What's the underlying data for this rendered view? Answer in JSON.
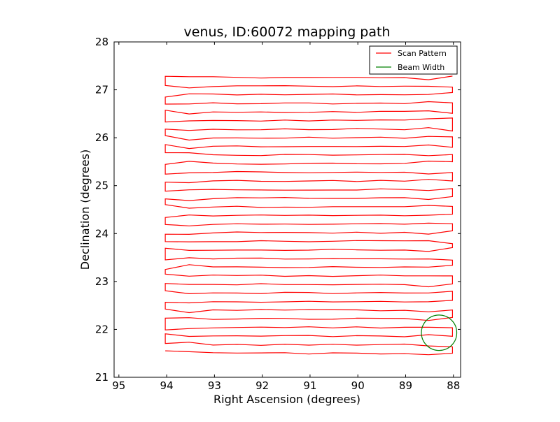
{
  "chart_data": {
    "type": "line",
    "title": "venus, ID:60072 mapping path",
    "xlabel": "Right Ascension (degrees)",
    "ylabel": "Declination (degrees)",
    "xlim": [
      95.1,
      87.85
    ],
    "ylim": [
      21,
      28
    ],
    "x_inverted": true,
    "x_ticks": [
      95,
      94,
      93,
      92,
      91,
      90,
      89,
      88
    ],
    "x_tick_labels": [
      "95",
      "94",
      "93",
      "92",
      "91",
      "90",
      "89",
      "88"
    ],
    "y_ticks": [
      21,
      22,
      23,
      24,
      25,
      26,
      27,
      28
    ],
    "y_tick_labels": [
      "21",
      "22",
      "23",
      "24",
      "25",
      "26",
      "27",
      "28"
    ],
    "grid": false,
    "legend": {
      "position": "upper-right",
      "entries": [
        "Scan Pattern",
        "Beam Width"
      ]
    },
    "series": [
      {
        "name": "Scan Pattern",
        "color": "#ff0000",
        "scan_rows": {
          "ra_start": 94.03,
          "ra_end": 88.02,
          "dec_start": 21.5,
          "dec_step": 0.18,
          "count": 33
        }
      },
      {
        "name": "Beam Width",
        "color": "#008000",
        "circle": {
          "center_ra": 88.3,
          "center_dec": 21.93,
          "radius_deg": 0.37
        }
      }
    ]
  }
}
